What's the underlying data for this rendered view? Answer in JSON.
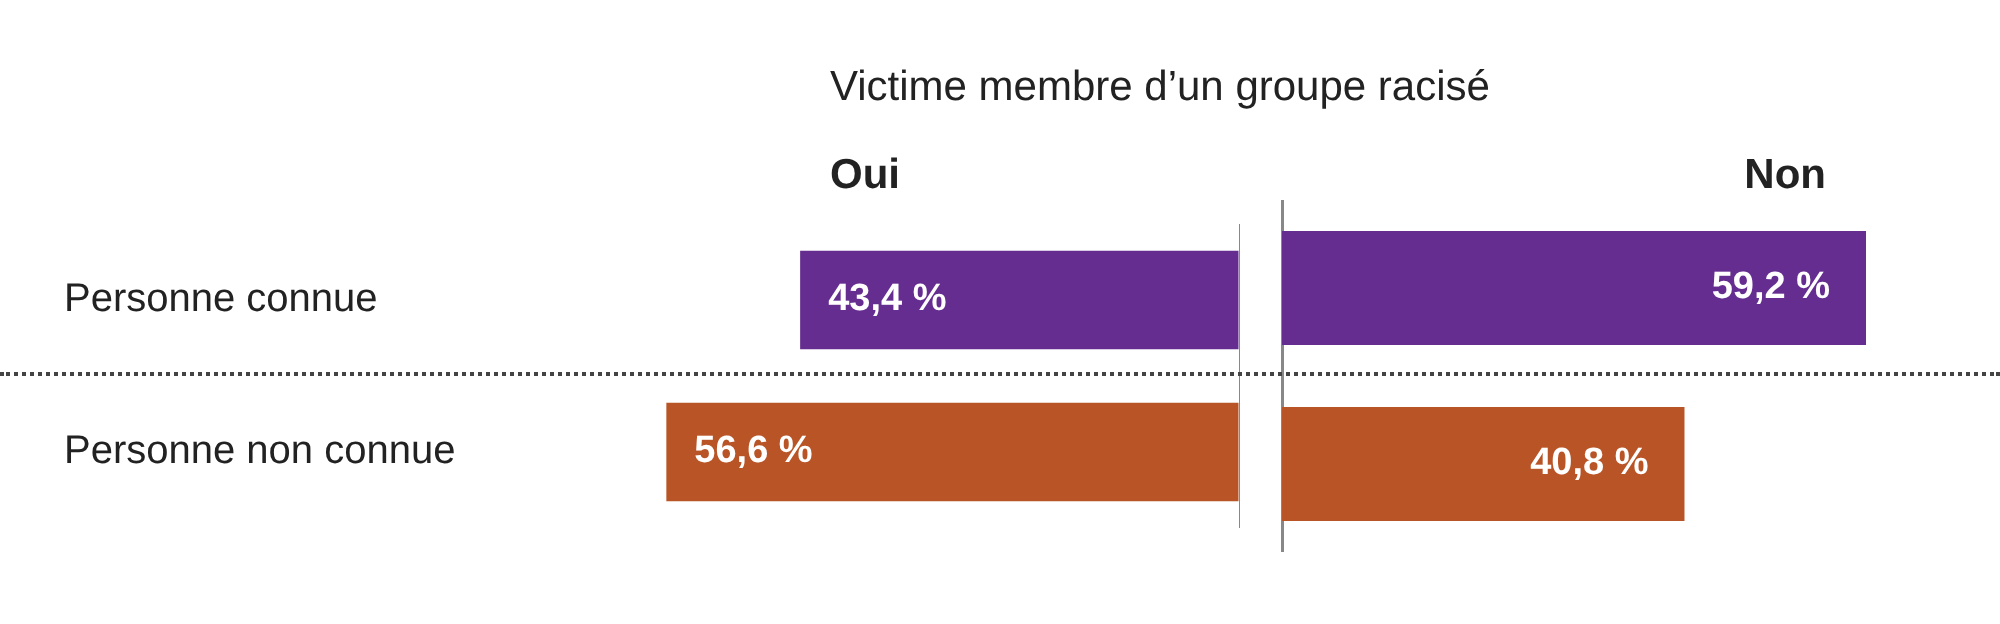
{
  "chart_data": [
    {
      "type": "bar",
      "orientation": "horizontal",
      "title": "Victime membre d’un groupe racisé",
      "subtitle": "Oui",
      "categories": [
        "Personne connue",
        "Personne non connue"
      ],
      "values": [
        43.4,
        56.6
      ],
      "colors": [
        "#652d90",
        "#b85426"
      ],
      "value_labels": [
        "43,4 %",
        "56,6 %"
      ],
      "legend": false
    },
    {
      "type": "bar",
      "orientation": "horizontal",
      "subtitle": "Non",
      "categories": [
        null,
        null
      ],
      "values": [
        59.2,
        40.8
      ],
      "colors": [
        "#652d90",
        "#b85426"
      ],
      "value_labels": [
        "59,2 %",
        "40,8 %"
      ],
      "legend": false
    }
  ]
}
